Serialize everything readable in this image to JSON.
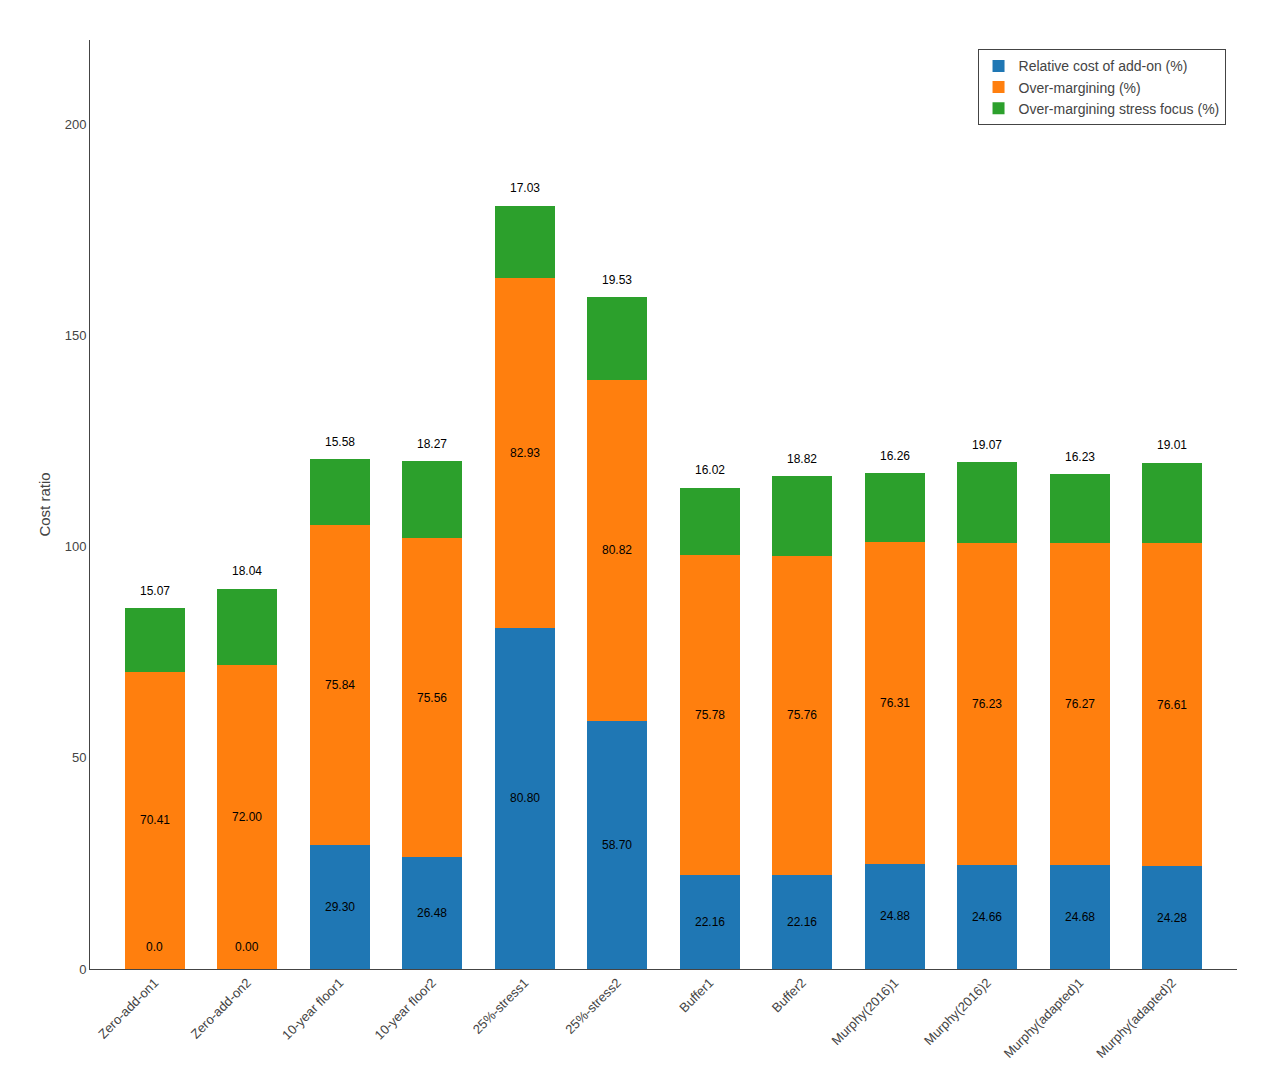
{
  "chart_data": {
    "type": "bar",
    "stacked": true,
    "data_labels": true,
    "categories": [
      "Zero-add-on1",
      "Zero-add-on2",
      "10-year floor1",
      "10-year floor2",
      "25%-stress1",
      "25%-stress2",
      "Buffer1",
      "Buffer2",
      "Murphy(2016)1",
      "Murphy(2016)2",
      "Murphy(adapted)1",
      "Murphy(adapted)2"
    ],
    "series": [
      {
        "name": "Relative cost of add-on (%)",
        "values": [
          0.0,
          0.0,
          29.3,
          26.48,
          80.8,
          58.7,
          22.16,
          22.16,
          24.88,
          24.66,
          24.68,
          24.28
        ],
        "value_labels": [
          "0.0",
          "0.00",
          "29.30",
          "26.48",
          "80.80",
          "58.70",
          "22.16",
          "22.16",
          "24.88",
          "24.66",
          "24.68",
          "24.28"
        ]
      },
      {
        "name": "Over-margining (%)",
        "values": [
          70.41,
          72.0,
          75.84,
          75.56,
          82.93,
          80.82,
          75.78,
          75.76,
          76.31,
          76.23,
          76.27,
          76.61
        ],
        "value_labels": [
          "70.41",
          "72.00",
          "75.84",
          "75.56",
          "82.93",
          "80.82",
          "75.78",
          "75.76",
          "76.31",
          "76.23",
          "76.27",
          "76.61"
        ]
      },
      {
        "name": "Over-margining stress focus (%)",
        "values": [
          15.07,
          18.04,
          15.58,
          18.27,
          17.03,
          19.53,
          16.02,
          18.82,
          16.26,
          19.07,
          16.23,
          19.01
        ],
        "value_labels": [
          "15.07",
          "18.04",
          "15.58",
          "18.27",
          "17.03",
          "19.53",
          "16.02",
          "18.82",
          "16.26",
          "19.07",
          "16.23",
          "19.01"
        ]
      }
    ],
    "ylabel": "Cost ratio",
    "ylim": [
      0,
      220
    ],
    "yticks": [
      0,
      50,
      100,
      150,
      200
    ],
    "grid": false,
    "legend": "upper right"
  }
}
